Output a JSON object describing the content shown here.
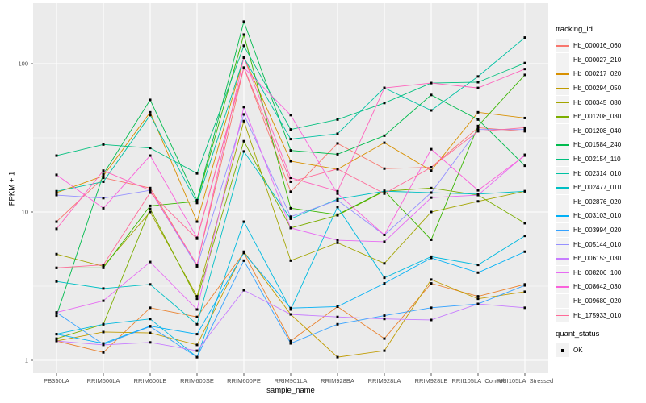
{
  "chart_data": {
    "type": "line",
    "xlabel": "sample_name",
    "ylabel": "FPKM + 1",
    "y_scale": "log10",
    "y_ticks": [
      1,
      10,
      100
    ],
    "y_minor_ticks": [
      3.1623,
      31.623
    ],
    "ylim": [
      0.82,
      250
    ],
    "grid": true,
    "panel_bg": "#EBEBEB",
    "grid_color": "#FFFFFF",
    "tick_label_color": "#4D4D4D",
    "point_shape": "square",
    "point_color": "#000000",
    "categories": [
      "PB350LA",
      "RRIM600LA",
      "RRIM600LE",
      "RRIM600SE",
      "RRIM600PE",
      "RRIM901LA",
      "RRIM928BA",
      "RRIM928LA",
      "RRIM928LE",
      "RRII105LA_Control",
      "RRII105LA_Stressed"
    ],
    "legend": {
      "title": "tracking_id",
      "position": "right"
    },
    "quant_legend": {
      "title": "quant_status",
      "items": [
        {
          "label": "OK",
          "shape": "square",
          "color": "#000000"
        }
      ]
    },
    "series": [
      {
        "name": "Hb_000016_060",
        "color": "#F8766D",
        "values": [
          8.6,
          17,
          14.5,
          4.4,
          94,
          13.7,
          29,
          19.6,
          20,
          37,
          35
        ]
      },
      {
        "name": "Hb_000027_210",
        "color": "#EA8331",
        "values": [
          1.35,
          1.13,
          2.26,
          1.96,
          5.3,
          1.35,
          2.3,
          1.4,
          3.3,
          2.7,
          3.25
        ]
      },
      {
        "name": "Hb_000217_020",
        "color": "#D89000",
        "values": [
          13.5,
          17.5,
          47,
          8.6,
          110,
          22,
          19.4,
          29.3,
          19,
          47,
          43
        ]
      },
      {
        "name": "Hb_000294_050",
        "color": "#C09B00",
        "values": [
          1.35,
          1.55,
          1.53,
          1.27,
          5.4,
          2.04,
          1.05,
          1.16,
          3.5,
          2.6,
          2.9
        ]
      },
      {
        "name": "Hb_000345_080",
        "color": "#A3A500",
        "values": [
          5.2,
          4.3,
          10,
          2.7,
          41,
          4.7,
          6.2,
          4.5,
          10,
          11.8,
          13.8
        ]
      },
      {
        "name": "Hb_001208_030",
        "color": "#7CAE00",
        "values": [
          1.4,
          1.75,
          10.5,
          2.6,
          30,
          7.8,
          9.5,
          13.8,
          14.5,
          13,
          8.4
        ]
      },
      {
        "name": "Hb_001208_040",
        "color": "#39B600",
        "values": [
          4.2,
          4.2,
          11,
          11.8,
          157,
          10.6,
          9.6,
          13.9,
          6.5,
          38,
          84
        ]
      },
      {
        "name": "Hb_001584_240",
        "color": "#00BB4E",
        "values": [
          2.0,
          18,
          57,
          12,
          192,
          26,
          24.5,
          32.7,
          61.5,
          42,
          20.5
        ]
      },
      {
        "name": "Hb_002154_110",
        "color": "#00BF7D",
        "values": [
          24,
          28.5,
          27,
          18.2,
          132,
          36,
          42,
          54.3,
          74,
          75,
          101
        ]
      },
      {
        "name": "Hb_002314_010",
        "color": "#00C1A3",
        "values": [
          13.8,
          16,
          45,
          11.5,
          110,
          31,
          33.7,
          68.6,
          48.4,
          82,
          150
        ]
      },
      {
        "name": "Hb_002477_010",
        "color": "#00BFC4",
        "values": [
          3.4,
          3.05,
          3.25,
          1.75,
          25.6,
          9.0,
          12.2,
          13.8,
          13.5,
          13.2,
          13.8
        ]
      },
      {
        "name": "Hb_002876_020",
        "color": "#00BAE0",
        "values": [
          1.5,
          1.75,
          1.9,
          1.05,
          8.6,
          2.2,
          10.8,
          3.6,
          5.0,
          4.4,
          6.9
        ]
      },
      {
        "name": "Hb_003103_010",
        "color": "#00B0F6",
        "values": [
          1.5,
          1.3,
          1.7,
          1.5,
          5.3,
          2.25,
          2.3,
          3.3,
          4.9,
          3.9,
          5.4
        ]
      },
      {
        "name": "Hb_003994_020",
        "color": "#35A2FF",
        "values": [
          2.1,
          1.28,
          1.69,
          1.05,
          4.7,
          1.3,
          1.75,
          2.0,
          2.26,
          2.4,
          3.2
        ]
      },
      {
        "name": "Hb_005144_010",
        "color": "#9590FF",
        "values": [
          13,
          12.4,
          14,
          4.3,
          45.5,
          9.3,
          12.0,
          7.0,
          13.5,
          36,
          36
        ]
      },
      {
        "name": "Hb_006153_030",
        "color": "#C77CFF",
        "values": [
          1.35,
          1.27,
          1.32,
          1.16,
          2.97,
          2.04,
          1.96,
          1.9,
          1.87,
          2.4,
          2.26
        ]
      },
      {
        "name": "Hb_008206_100",
        "color": "#E76BF3",
        "values": [
          2.1,
          2.52,
          4.6,
          2.2,
          51,
          7.8,
          6.45,
          6.3,
          12.5,
          13,
          24.3
        ]
      },
      {
        "name": "Hb_008642_030",
        "color": "#FA62DB",
        "values": [
          17.8,
          10.6,
          24,
          6.7,
          94,
          45,
          13.3,
          7.0,
          26.5,
          14,
          24
        ]
      },
      {
        "name": "Hb_009680_020",
        "color": "#FF62BC",
        "values": [
          7.7,
          19,
          14,
          4.4,
          110,
          17,
          13.8,
          68.6,
          74,
          68.6,
          92
        ]
      },
      {
        "name": "Hb_175933_010",
        "color": "#FF6A98",
        "values": [
          4.2,
          4.4,
          13.5,
          6.6,
          94,
          16,
          19.5,
          13.3,
          20,
          35,
          37
        ]
      }
    ]
  }
}
